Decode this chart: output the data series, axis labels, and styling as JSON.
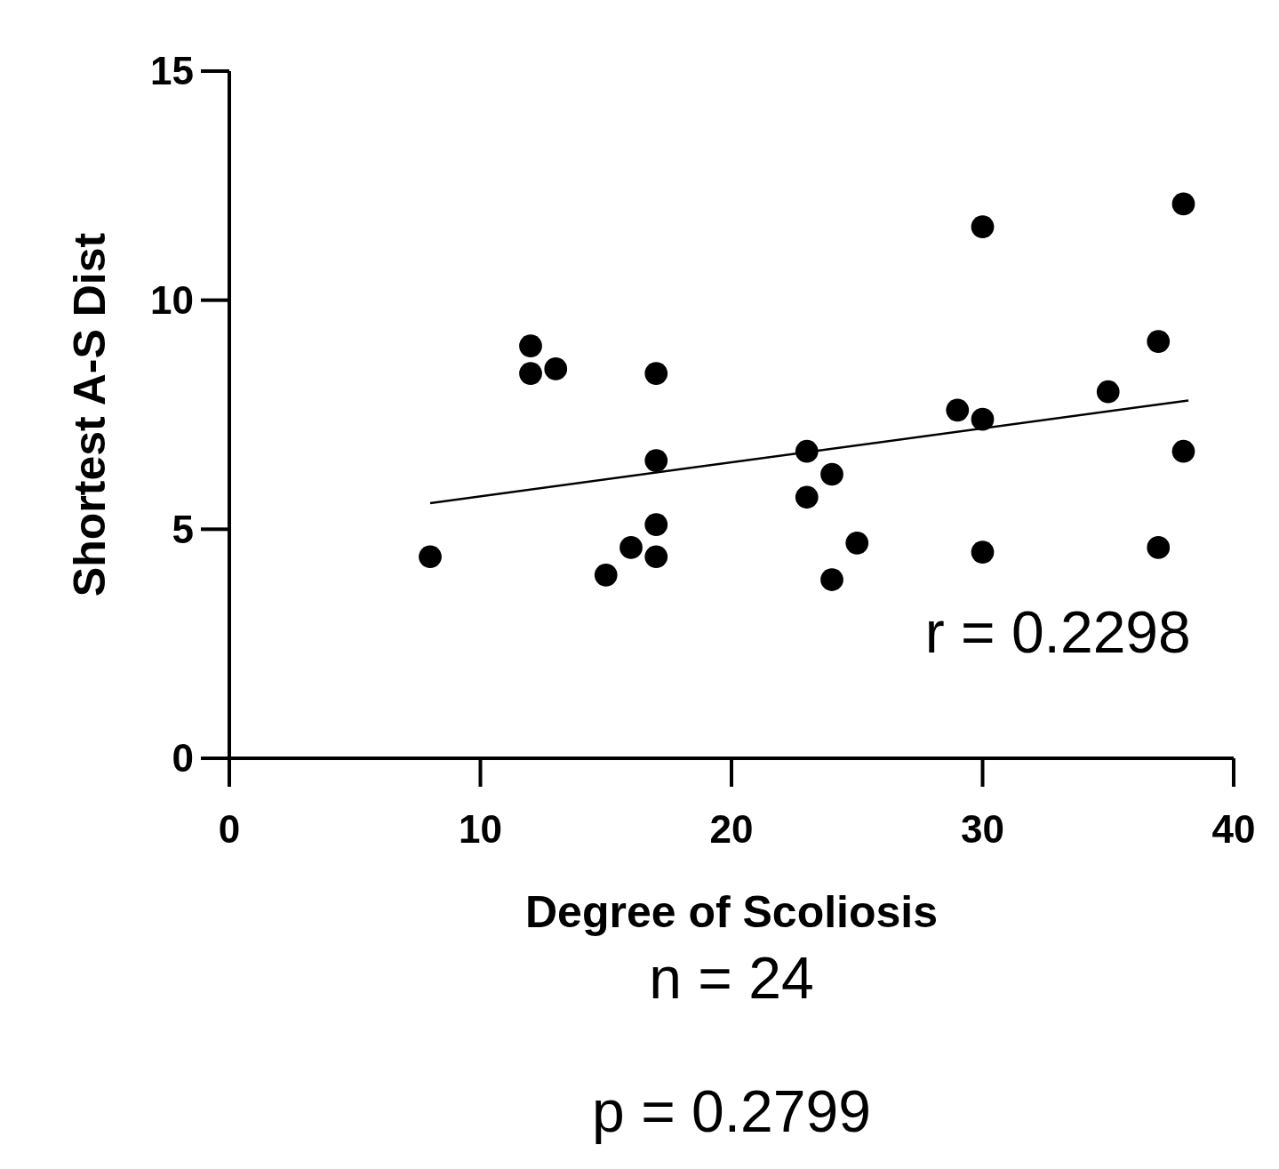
{
  "chart_data": {
    "type": "scatter",
    "xlabel": "Degree of Scoliosis",
    "ylabel": "Shortest A-S Dist",
    "xlim": [
      0,
      40
    ],
    "xticks": [
      0,
      10,
      20,
      30,
      40
    ],
    "ylim": [
      0,
      15
    ],
    "yticks": [
      0,
      5,
      10,
      15
    ],
    "grid": false,
    "series": [
      {
        "color": "#000000",
        "marker": "circle",
        "x": [
          8,
          12,
          12,
          13,
          15,
          16,
          17,
          17,
          17,
          17,
          23,
          23,
          24,
          24,
          25,
          29,
          30,
          30,
          30,
          35,
          37,
          37,
          38,
          38
        ],
        "values": [
          4.4,
          9.0,
          8.4,
          8.5,
          4.0,
          4.6,
          8.4,
          6.5,
          5.1,
          4.4,
          6.7,
          5.7,
          6.2,
          3.9,
          4.7,
          7.6,
          7.4,
          11.6,
          4.5,
          8.0,
          9.1,
          4.6,
          12.1,
          6.7
        ]
      },
      {
        "type": "line",
        "marker": "none",
        "color": "#000000",
        "x": [
          8,
          38.2
        ],
        "values": [
          5.57,
          7.81
        ]
      }
    ],
    "annotations": [
      "r = 0.2298",
      "n = 24",
      "p = 0.2799"
    ]
  }
}
